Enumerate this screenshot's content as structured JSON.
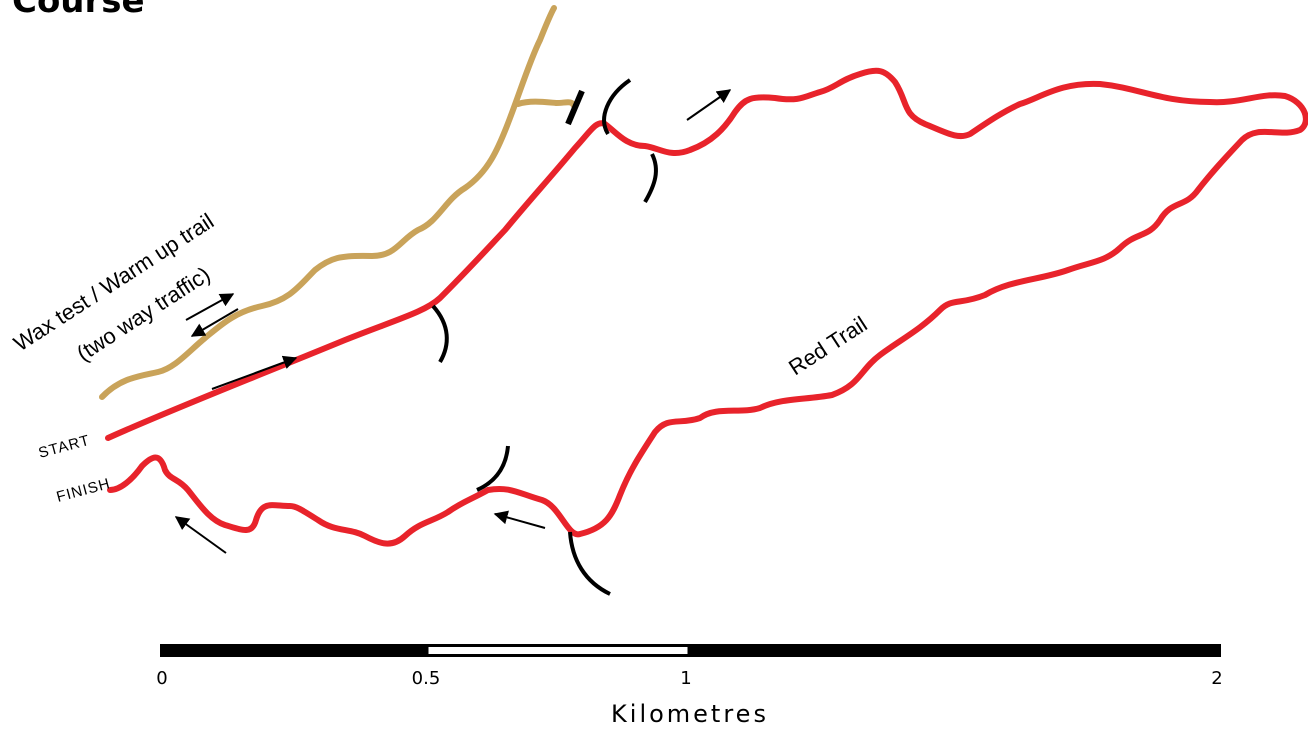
{
  "title": "Course",
  "labels": {
    "warmup_line1": "Wax test / Warm up trail",
    "warmup_line2": "(two way traffic)",
    "red_trail": "Red Trail",
    "start": "START",
    "finish": "FINISH"
  },
  "scale_bar": {
    "ticks": [
      "0",
      "0.5",
      "1",
      "2"
    ],
    "unit": "Kilometres"
  },
  "colors": {
    "red_trail": "#e8232b",
    "warmup_trail": "#c9a35a",
    "markers": "#000000"
  }
}
